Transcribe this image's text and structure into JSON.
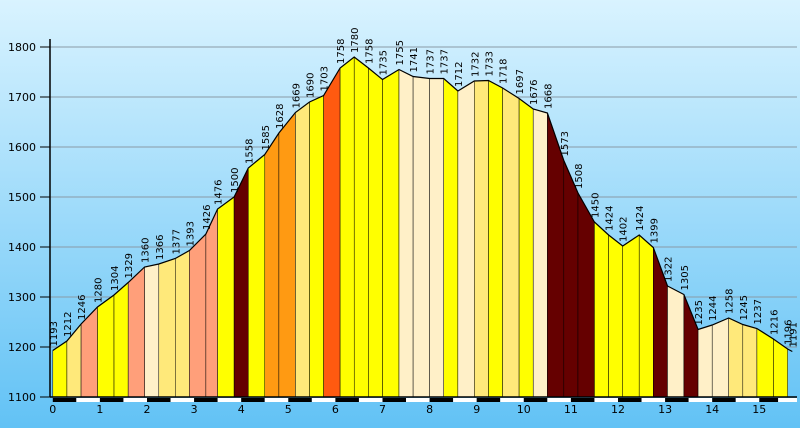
{
  "chart_data": {
    "type": "area",
    "title": "",
    "xlabel": "",
    "ylabel": "",
    "xlim": [
      0,
      15.7
    ],
    "ylim": [
      1100,
      1800
    ],
    "y_ticks": [
      1100,
      1200,
      1300,
      1400,
      1500,
      1600,
      1700,
      1800
    ],
    "x_ticks": [
      0,
      1,
      2,
      3,
      4,
      5,
      6,
      7,
      8,
      9,
      10,
      11,
      12,
      13,
      14,
      15
    ],
    "grid": "horizontal",
    "background": [
      "#d9f3ff",
      "#62c2f5"
    ],
    "palette": {
      "white": "#fff0c8",
      "light_yellow": "#ffe97a",
      "yellow": "#ffff00",
      "orange": "#ff9a12",
      "salmon": "#ff9f7a",
      "red_orange": "#ff5a10",
      "dark_red": "#650000"
    },
    "segments": [
      {
        "x0": 0.0,
        "x1": 0.3,
        "color": "yellow"
      },
      {
        "x0": 0.3,
        "x1": 0.6,
        "color": "light_yellow"
      },
      {
        "x0": 0.6,
        "x1": 0.95,
        "color": "salmon"
      },
      {
        "x0": 0.95,
        "x1": 1.3,
        "color": "yellow"
      },
      {
        "x0": 1.3,
        "x1": 1.6,
        "color": "yellow"
      },
      {
        "x0": 1.6,
        "x1": 1.95,
        "color": "salmon"
      },
      {
        "x0": 1.95,
        "x1": 2.25,
        "color": "white"
      },
      {
        "x0": 2.25,
        "x1": 2.6,
        "color": "light_yellow"
      },
      {
        "x0": 2.6,
        "x1": 2.9,
        "color": "light_yellow"
      },
      {
        "x0": 2.9,
        "x1": 3.25,
        "color": "salmon"
      },
      {
        "x0": 3.25,
        "x1": 3.5,
        "color": "salmon"
      },
      {
        "x0": 3.5,
        "x1": 3.85,
        "color": "yellow"
      },
      {
        "x0": 3.85,
        "x1": 4.15,
        "color": "dark_red"
      },
      {
        "x0": 4.15,
        "x1": 4.5,
        "color": "yellow"
      },
      {
        "x0": 4.5,
        "x1": 4.8,
        "color": "orange"
      },
      {
        "x0": 4.8,
        "x1": 5.15,
        "color": "orange"
      },
      {
        "x0": 5.15,
        "x1": 5.45,
        "color": "light_yellow"
      },
      {
        "x0": 5.45,
        "x1": 5.75,
        "color": "yellow"
      },
      {
        "x0": 5.75,
        "x1": 6.1,
        "color": "red_orange"
      },
      {
        "x0": 6.1,
        "x1": 6.4,
        "color": "yellow"
      },
      {
        "x0": 6.4,
        "x1": 6.7,
        "color": "yellow"
      },
      {
        "x0": 6.7,
        "x1": 7.0,
        "color": "yellow"
      },
      {
        "x0": 7.0,
        "x1": 7.35,
        "color": "yellow"
      },
      {
        "x0": 7.35,
        "x1": 7.65,
        "color": "white"
      },
      {
        "x0": 7.65,
        "x1": 8.0,
        "color": "white"
      },
      {
        "x0": 8.0,
        "x1": 8.3,
        "color": "white"
      },
      {
        "x0": 8.3,
        "x1": 8.6,
        "color": "yellow"
      },
      {
        "x0": 8.6,
        "x1": 8.95,
        "color": "white"
      },
      {
        "x0": 8.95,
        "x1": 9.25,
        "color": "light_yellow"
      },
      {
        "x0": 9.25,
        "x1": 9.55,
        "color": "yellow"
      },
      {
        "x0": 9.55,
        "x1": 9.9,
        "color": "light_yellow"
      },
      {
        "x0": 9.9,
        "x1": 10.2,
        "color": "yellow"
      },
      {
        "x0": 10.2,
        "x1": 10.5,
        "color": "white"
      },
      {
        "x0": 10.5,
        "x1": 10.85,
        "color": "dark_red"
      },
      {
        "x0": 10.85,
        "x1": 11.15,
        "color": "dark_red"
      },
      {
        "x0": 11.15,
        "x1": 11.5,
        "color": "dark_red"
      },
      {
        "x0": 11.5,
        "x1": 11.8,
        "color": "yellow"
      },
      {
        "x0": 11.8,
        "x1": 12.1,
        "color": "yellow"
      },
      {
        "x0": 12.1,
        "x1": 12.45,
        "color": "yellow"
      },
      {
        "x0": 12.45,
        "x1": 12.75,
        "color": "yellow"
      },
      {
        "x0": 12.75,
        "x1": 13.05,
        "color": "dark_red"
      },
      {
        "x0": 13.05,
        "x1": 13.4,
        "color": "white"
      },
      {
        "x0": 13.4,
        "x1": 13.7,
        "color": "dark_red"
      },
      {
        "x0": 13.7,
        "x1": 14.0,
        "color": "white"
      },
      {
        "x0": 14.0,
        "x1": 14.35,
        "color": "white"
      },
      {
        "x0": 14.35,
        "x1": 14.65,
        "color": "light_yellow"
      },
      {
        "x0": 14.65,
        "x1": 14.95,
        "color": "light_yellow"
      },
      {
        "x0": 14.95,
        "x1": 15.3,
        "color": "yellow"
      },
      {
        "x0": 15.3,
        "x1": 15.6,
        "color": "yellow"
      }
    ],
    "profile": [
      [
        0.0,
        1193
      ],
      [
        0.3,
        1212
      ],
      [
        0.6,
        1246
      ],
      [
        0.95,
        1280
      ],
      [
        1.3,
        1304
      ],
      [
        1.6,
        1329
      ],
      [
        1.95,
        1360
      ],
      [
        2.25,
        1366
      ],
      [
        2.6,
        1377
      ],
      [
        2.9,
        1393
      ],
      [
        3.25,
        1426
      ],
      [
        3.5,
        1476
      ],
      [
        3.85,
        1500
      ],
      [
        4.15,
        1558
      ],
      [
        4.5,
        1585
      ],
      [
        4.8,
        1628
      ],
      [
        5.15,
        1669
      ],
      [
        5.45,
        1690
      ],
      [
        5.75,
        1703
      ],
      [
        6.1,
        1758
      ],
      [
        6.4,
        1780
      ],
      [
        6.7,
        1758
      ],
      [
        7.0,
        1735
      ],
      [
        7.35,
        1755
      ],
      [
        7.65,
        1741
      ],
      [
        8.0,
        1737
      ],
      [
        8.3,
        1737
      ],
      [
        8.6,
        1712
      ],
      [
        8.95,
        1732
      ],
      [
        9.25,
        1733
      ],
      [
        9.55,
        1718
      ],
      [
        9.9,
        1697
      ],
      [
        10.2,
        1676
      ],
      [
        10.5,
        1668
      ],
      [
        10.85,
        1573
      ],
      [
        11.15,
        1508
      ],
      [
        11.5,
        1450
      ],
      [
        11.8,
        1424
      ],
      [
        12.1,
        1402
      ],
      [
        12.45,
        1424
      ],
      [
        12.75,
        1399
      ],
      [
        13.05,
        1322
      ],
      [
        13.4,
        1305
      ],
      [
        13.7,
        1235
      ],
      [
        14.0,
        1244
      ],
      [
        14.35,
        1258
      ],
      [
        14.65,
        1245
      ],
      [
        14.95,
        1237
      ],
      [
        15.3,
        1216
      ],
      [
        15.6,
        1196
      ],
      [
        15.7,
        1191
      ]
    ],
    "labels": [
      {
        "x": 0.0,
        "y": 1193,
        "text": "1193"
      },
      {
        "x": 0.3,
        "y": 1212,
        "text": "1212"
      },
      {
        "x": 0.6,
        "y": 1246,
        "text": "1246"
      },
      {
        "x": 0.95,
        "y": 1280,
        "text": "1280"
      },
      {
        "x": 1.3,
        "y": 1304,
        "text": "1304"
      },
      {
        "x": 1.6,
        "y": 1329,
        "text": "1329"
      },
      {
        "x": 1.95,
        "y": 1360,
        "text": "1360"
      },
      {
        "x": 2.25,
        "y": 1366,
        "text": "1366"
      },
      {
        "x": 2.6,
        "y": 1377,
        "text": "1377"
      },
      {
        "x": 2.9,
        "y": 1393,
        "text": "1393"
      },
      {
        "x": 3.25,
        "y": 1426,
        "text": "1426"
      },
      {
        "x": 3.5,
        "y": 1476,
        "text": "1476"
      },
      {
        "x": 3.85,
        "y": 1500,
        "text": "1500"
      },
      {
        "x": 4.15,
        "y": 1558,
        "text": "1558"
      },
      {
        "x": 4.5,
        "y": 1585,
        "text": "1585"
      },
      {
        "x": 4.8,
        "y": 1628,
        "text": "1628"
      },
      {
        "x": 5.15,
        "y": 1669,
        "text": "1669"
      },
      {
        "x": 5.45,
        "y": 1690,
        "text": "1690"
      },
      {
        "x": 5.75,
        "y": 1703,
        "text": "1703"
      },
      {
        "x": 6.1,
        "y": 1758,
        "text": "1758"
      },
      {
        "x": 6.4,
        "y": 1780,
        "text": "1780"
      },
      {
        "x": 6.7,
        "y": 1758,
        "text": "1758"
      },
      {
        "x": 7.0,
        "y": 1735,
        "text": "1735"
      },
      {
        "x": 7.35,
        "y": 1755,
        "text": "1755"
      },
      {
        "x": 7.65,
        "y": 1741,
        "text": "1741"
      },
      {
        "x": 8.0,
        "y": 1737,
        "text": "1737"
      },
      {
        "x": 8.3,
        "y": 1737,
        "text": "1737"
      },
      {
        "x": 8.6,
        "y": 1712,
        "text": "1712"
      },
      {
        "x": 8.95,
        "y": 1732,
        "text": "1732"
      },
      {
        "x": 9.25,
        "y": 1733,
        "text": "1733"
      },
      {
        "x": 9.55,
        "y": 1718,
        "text": "1718"
      },
      {
        "x": 9.9,
        "y": 1697,
        "text": "1697"
      },
      {
        "x": 10.2,
        "y": 1676,
        "text": "1676"
      },
      {
        "x": 10.5,
        "y": 1668,
        "text": "1668"
      },
      {
        "x": 10.85,
        "y": 1573,
        "text": "1573"
      },
      {
        "x": 11.15,
        "y": 1508,
        "text": "1508"
      },
      {
        "x": 11.5,
        "y": 1450,
        "text": "1450"
      },
      {
        "x": 11.8,
        "y": 1424,
        "text": "1424"
      },
      {
        "x": 12.1,
        "y": 1402,
        "text": "1402"
      },
      {
        "x": 12.45,
        "y": 1424,
        "text": "1424"
      },
      {
        "x": 12.75,
        "y": 1399,
        "text": "1399"
      },
      {
        "x": 13.05,
        "y": 1322,
        "text": "1322"
      },
      {
        "x": 13.4,
        "y": 1305,
        "text": "1305"
      },
      {
        "x": 13.7,
        "y": 1235,
        "text": "1235"
      },
      {
        "x": 14.0,
        "y": 1244,
        "text": "1244"
      },
      {
        "x": 14.35,
        "y": 1258,
        "text": "1258"
      },
      {
        "x": 14.65,
        "y": 1245,
        "text": "1245"
      },
      {
        "x": 14.95,
        "y": 1237,
        "text": "1237"
      },
      {
        "x": 15.3,
        "y": 1216,
        "text": "1216"
      },
      {
        "x": 15.6,
        "y": 1196,
        "text": "1196"
      },
      {
        "x": 15.7,
        "y": 1191,
        "text": "1191"
      }
    ]
  }
}
